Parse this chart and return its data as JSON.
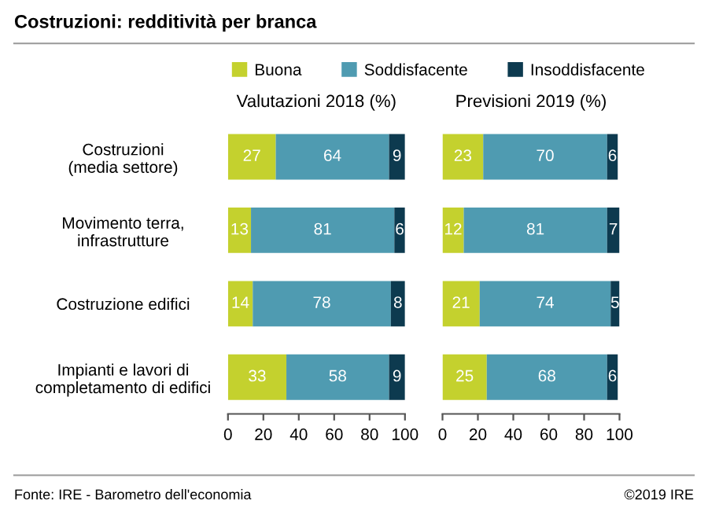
{
  "chart_data": [
    {
      "type": "bar",
      "orientation": "horizontal",
      "stacked": true,
      "title": "Costruzioni: redditività per branca",
      "subtitle": "Valutazioni 2018 (%)",
      "categories": [
        "Costruzioni\n(media settore)",
        "Movimento terra,\ninfrastrutture",
        "Costruzione edifici",
        "Impianti e lavori di\ncompletamento di edifici"
      ],
      "series": [
        {
          "name": "Buona",
          "color": "#c4d12e",
          "values": [
            27,
            13,
            14,
            33
          ]
        },
        {
          "name": "Soddisfacente",
          "color": "#4f9bb1",
          "values": [
            64,
            81,
            78,
            58
          ]
        },
        {
          "name": "Insoddisfacente",
          "color": "#0d3a4f",
          "values": [
            9,
            6,
            8,
            9
          ]
        }
      ],
      "xlim": [
        0,
        100
      ],
      "xticks": [
        0,
        20,
        40,
        60,
        80,
        100
      ],
      "data_labels": true,
      "legend": "top",
      "grid": false,
      "annotations": [
        "Fonte: IRE - Barometro dell'economia",
        "©2019 IRE"
      ]
    },
    {
      "type": "bar",
      "orientation": "horizontal",
      "stacked": true,
      "subtitle": "Previsioni 2019 (%)",
      "categories": [
        null,
        null,
        null,
        null
      ],
      "series": [
        {
          "color": "#c4d12e",
          "values": [
            23,
            12,
            21,
            25
          ]
        },
        {
          "color": "#4f9bb1",
          "values": [
            70,
            81,
            74,
            68
          ]
        },
        {
          "color": "#0d3a4f",
          "values": [
            6,
            7,
            5,
            6
          ]
        }
      ],
      "xlim": [
        0,
        100
      ],
      "xticks": [
        0,
        20,
        40,
        60,
        80,
        100
      ],
      "data_labels": true,
      "tick_labels": "x",
      "grid": false
    }
  ]
}
